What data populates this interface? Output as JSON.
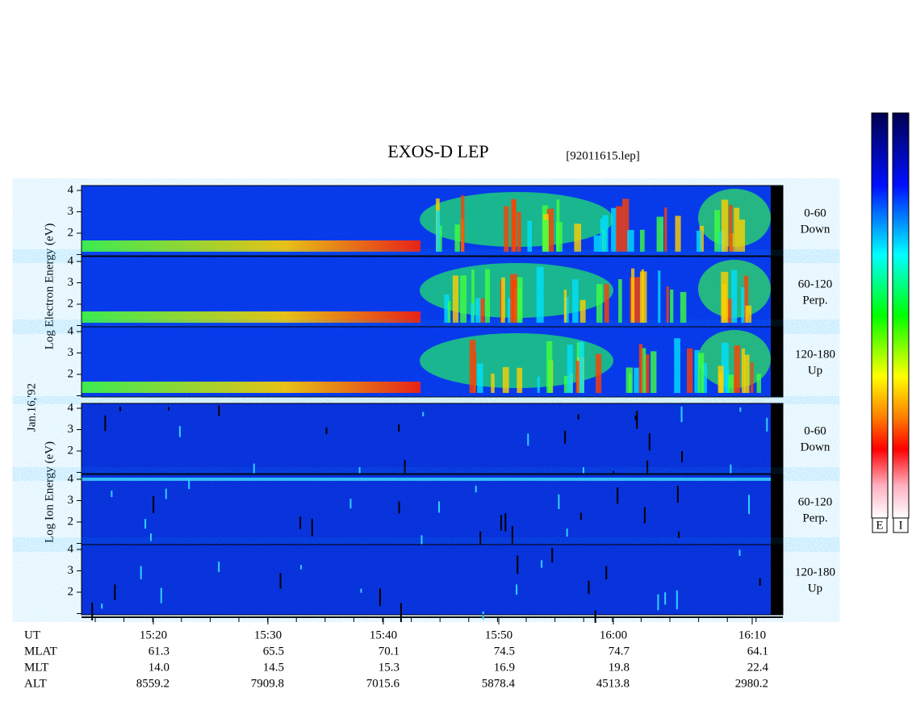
{
  "header": {
    "title": "EXOS-D LEP",
    "file": "[92011615.lep]"
  },
  "date": "Jan.16,'92",
  "yticks": [
    "4",
    "3",
    "2"
  ],
  "electron": {
    "axis_label": "Log Electron Energy (eV)",
    "panels": [
      {
        "angle": "0-60",
        "direction": "Down"
      },
      {
        "angle": "60-120",
        "direction": "Perp."
      },
      {
        "angle": "120-180",
        "direction": "Up"
      }
    ]
  },
  "ion": {
    "axis_label": "Log Ion Energy (eV)",
    "panels": [
      {
        "angle": "0-60",
        "direction": "Down"
      },
      {
        "angle": "60-120",
        "direction": "Perp."
      },
      {
        "angle": "120-180",
        "direction": "Up"
      }
    ]
  },
  "time_axis": {
    "ticks": [
      "15:20",
      "15:30",
      "15:40",
      "15:50",
      "16:00",
      "16:10"
    ]
  },
  "footer": {
    "labels": [
      "UT",
      "MLAT",
      "MLT",
      "ALT"
    ],
    "rows": [
      [
        "61.3",
        "65.5",
        "70.1",
        "74.5",
        "74.7",
        "64.1"
      ],
      [
        "14.0",
        "14.5",
        "15.3",
        "16.9",
        "19.8",
        "22.4"
      ],
      [
        "8559.2",
        "7909.8",
        "7015.6",
        "5878.4",
        "4513.8",
        "2980.2"
      ]
    ]
  },
  "colorbar": {
    "labels": [
      "E",
      "I"
    ]
  }
}
